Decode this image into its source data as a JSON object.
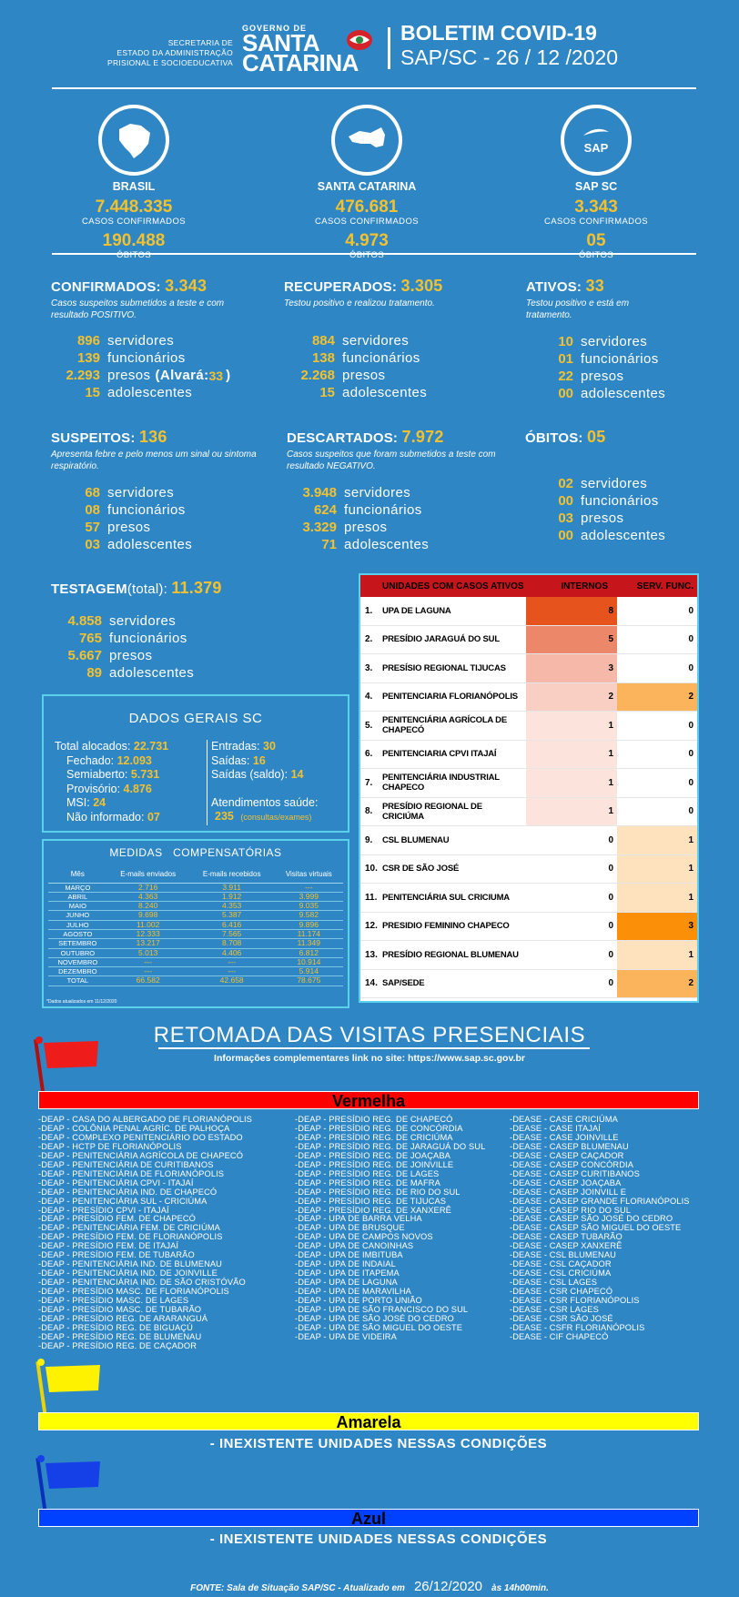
{
  "header": {
    "secretaria": "SECRETARIA DE\nESTADO DA ADMINISTRAÇÃO\nPRISIONAL E SOCIOEDUCATIVA",
    "gov": "GOVERNO DE",
    "state1": "SANTA",
    "state2": "CATARINA",
    "title": "BOLETIM COVID-19",
    "subtitle": "SAP/SC - 26 / 12 /2020"
  },
  "regions": [
    {
      "name": "BRASIL",
      "cases": "7.448.335",
      "cases_label": "CASOS CONFIRMADOS",
      "deaths": "190.488",
      "deaths_label": "ÓBITOS"
    },
    {
      "name": "SANTA CATARINA",
      "cases": "476.681",
      "cases_label": "CASOS CONFIRMADOS",
      "deaths": "4.973",
      "deaths_label": "ÓBITOS"
    },
    {
      "name": "SAP SC",
      "logo_text": "SAP",
      "cases": "3.343",
      "cases_label": "CASOS CONFIRMADOS",
      "deaths": "05",
      "deaths_label": "ÓBITOS"
    }
  ],
  "confirmados": {
    "label": "CONFIRMADOS:",
    "value": "3.343",
    "desc": "Casos suspeitos submetidos a teste e com resultado POSITIVO.",
    "rows": [
      {
        "n": "896",
        "t": "servidores"
      },
      {
        "n": "139",
        "t": "funcionários"
      },
      {
        "n": "2.293",
        "t": "presos"
      },
      {
        "n": "15",
        "t": "adolescentes"
      }
    ],
    "alvara_label": "(Alvará:",
    "alvara_value": "33",
    "alvara_close": ")"
  },
  "recuperados": {
    "label": "RECUPERADOS:",
    "value": "3.305",
    "desc": "Testou positivo e realizou tratamento.",
    "rows": [
      {
        "n": "884",
        "t": "servidores"
      },
      {
        "n": "138",
        "t": "funcionários"
      },
      {
        "n": "2.268",
        "t": "presos"
      },
      {
        "n": "15",
        "t": "adolescentes"
      }
    ]
  },
  "ativos": {
    "label": "ATIVOS:",
    "value": "33",
    "desc": "Testou positivo e está em tratamento.",
    "rows": [
      {
        "n": "10",
        "t": "servidores"
      },
      {
        "n": "01",
        "t": "funcionários"
      },
      {
        "n": "22",
        "t": "presos"
      },
      {
        "n": "00",
        "t": "adolescentes"
      }
    ]
  },
  "suspeitos": {
    "label": "SUSPEITOS:",
    "value": "136",
    "desc": "Apresenta febre e pelo menos um sinal ou sintoma respiratório.",
    "rows": [
      {
        "n": "68",
        "t": "servidores"
      },
      {
        "n": "08",
        "t": "funcionários"
      },
      {
        "n": "57",
        "t": "presos"
      },
      {
        "n": "03",
        "t": "adolescentes"
      }
    ]
  },
  "descartados": {
    "label": "DESCARTADOS:",
    "value": "7.972",
    "desc": "Casos suspeitos que foram submetidos a teste com resultado NEGATIVO.",
    "rows": [
      {
        "n": "3.948",
        "t": "servidores"
      },
      {
        "n": "624",
        "t": "funcionários"
      },
      {
        "n": "3.329",
        "t": "presos"
      },
      {
        "n": "71",
        "t": "adolescentes"
      }
    ]
  },
  "obitos": {
    "label": "ÓBITOS:",
    "value": "05",
    "rows": [
      {
        "n": "02",
        "t": "servidores"
      },
      {
        "n": "00",
        "t": "funcionários"
      },
      {
        "n": "03",
        "t": "presos"
      },
      {
        "n": "00",
        "t": "adolescentes"
      }
    ]
  },
  "testagem": {
    "label": "TESTAGEM",
    "sub": "(total):",
    "value": "11.379",
    "rows": [
      {
        "n": "4.858",
        "t": "servidores"
      },
      {
        "n": "765",
        "t": "funcionários"
      },
      {
        "n": "5.667",
        "t": "presos"
      },
      {
        "n": "89",
        "t": "adolescentes"
      }
    ]
  },
  "dados_gerais": {
    "title": "DADOS GERAIS SC",
    "left": [
      {
        "l": "Total alocados:",
        "v": "22.731"
      },
      {
        "l": "Fechado:",
        "v": "12.093"
      },
      {
        "l": "Semiaberto:",
        "v": "5.731"
      },
      {
        "l": "Provisório:",
        "v": "4.876"
      },
      {
        "l": "MSI:",
        "v": "24"
      },
      {
        "l": "Não informado:",
        "v": "07"
      }
    ],
    "right": [
      {
        "l": "Entradas:",
        "v": "30"
      },
      {
        "l": "Saídas:",
        "v": "16"
      },
      {
        "l": "Saídas (saldo):",
        "v": "14"
      }
    ],
    "atend_label": "Atendimentos saúde:",
    "atend_value": "235",
    "atend_note": "(consultas/exames)"
  },
  "medidas": {
    "title": "MEDIDAS   COMPENSATÓRIAS",
    "headers": [
      "Mês",
      "E-mails enviados",
      "E-mails recebidos",
      "Visitas virtuais"
    ],
    "rows": [
      [
        "MARÇO",
        "2.716",
        "3.911",
        "---"
      ],
      [
        "ABRIL",
        "4.363",
        "1.912",
        "3.999"
      ],
      [
        "MAIO",
        "8.240",
        "4.353",
        "9.035"
      ],
      [
        "JUNHO",
        "9.698",
        "5.387",
        "9.582"
      ],
      [
        "JULHO",
        "11.002",
        "6.416",
        "9.896"
      ],
      [
        "AGOSTO",
        "12.333",
        "7.565",
        "11.174"
      ],
      [
        "SETEMBRO",
        "13.217",
        "8.708",
        "11.349"
      ],
      [
        "OUTUBRO",
        "5.013",
        "4.406",
        "6.812"
      ],
      [
        "NOVEMBRO",
        "---",
        "---",
        "10.914"
      ],
      [
        "DEZEMBRO",
        "---",
        "---",
        "5.914"
      ],
      [
        "TOTAL",
        "66.582",
        "42.658",
        "78.675"
      ]
    ],
    "note": "*Dados atualizados em 11/12/2020"
  },
  "unidades": {
    "headers": [
      "UNIDADES COM CASOS ATIVOS",
      "INTERNOS",
      "SERV. FUNC."
    ],
    "rows": [
      {
        "i": "1.",
        "n": "UPA DE LAGUNA",
        "a": "8",
        "b": "0",
        "ca": "#e6531d",
        "cb": "#ffffff"
      },
      {
        "i": "2.",
        "n": "PRESÍDIO JARAGUÁ DO SUL",
        "a": "5",
        "b": "0",
        "ca": "#ec876a",
        "cb": "#ffffff"
      },
      {
        "i": "3.",
        "n": "PRESÍSIO REGIONAL TIJUCAS",
        "a": "3",
        "b": "0",
        "ca": "#f6b8a8",
        "cb": "#ffffff"
      },
      {
        "i": "4.",
        "n": "PENITENCIARIA FLORIANÓPOLIS",
        "a": "2",
        "b": "2",
        "ca": "#f9cfc3",
        "cb": "#fbb45b"
      },
      {
        "i": "5.",
        "n": "PENITENCIÁRIA AGRÍCOLA DE CHAPECÓ",
        "a": "1",
        "b": "0",
        "ca": "#fce4dd",
        "cb": "#ffffff"
      },
      {
        "i": "6.",
        "n": "PENITENCIARIA CPVI ITAJAÍ",
        "a": "1",
        "b": "0",
        "ca": "#fce4dd",
        "cb": "#ffffff"
      },
      {
        "i": "7.",
        "n": "PENITENCIÁRIA INDUSTRIAL CHAPECO",
        "a": "1",
        "b": "0",
        "ca": "#fce4dd",
        "cb": "#ffffff"
      },
      {
        "i": "8.",
        "n": "PRESÍDIO REGIONAL DE CRICIÚMA",
        "a": "1",
        "b": "0",
        "ca": "#fce4dd",
        "cb": "#ffffff"
      },
      {
        "i": "9.",
        "n": "CSL BLUMENAU",
        "a": "0",
        "b": "1",
        "ca": "#ffffff",
        "cb": "#fde2bd"
      },
      {
        "i": "10.",
        "n": "CSR DE SÃO JOSÉ",
        "a": "0",
        "b": "1",
        "ca": "#ffffff",
        "cb": "#fde2bd"
      },
      {
        "i": "11.",
        "n": "PENITENCIÁRIA SUL CRICIUMA",
        "a": "0",
        "b": "1",
        "ca": "#ffffff",
        "cb": "#fde2bd"
      },
      {
        "i": "12.",
        "n": "PRESIDIO FEMININO CHAPECO",
        "a": "0",
        "b": "3",
        "ca": "#ffffff",
        "cb": "#fb8f08"
      },
      {
        "i": "13.",
        "n": "PRESÍDIO REGIONAL BLUMENAU",
        "a": "0",
        "b": "1",
        "ca": "#ffffff",
        "cb": "#fde2bd"
      },
      {
        "i": "14.",
        "n": "SAP/SEDE",
        "a": "0",
        "b": "2",
        "ca": "#ffffff",
        "cb": "#fbb45b"
      }
    ]
  },
  "retomada": {
    "title": "RETOMADA DAS VISITAS PRESENCIAIS",
    "info": "Informações complementares link no site: https://www.sap.sc.gov.br",
    "vermelha": "Vermelha",
    "amarela": "Amarela",
    "azul": "Azul",
    "inexistente": "- INEXISTENTE UNIDADES NESSAS  CONDIÇÕES",
    "col1": [
      "-DEAP - CASA DO ALBERGADO DE FLORIANÓPOLIS",
      "-DEAP - COLÔNIA PENAL AGRÍC. DE PALHOÇA",
      "-DEAP - COMPLEXO PENITENCIÁRIO DO ESTADO",
      "-DEAP - HCTP DE FLORIANÓPOLIS",
      "-DEAP - PENITENCIÁRIA AGRÍCOLA DE CHAPECÓ",
      "-DEAP - PENITENCIÁRIA DE CURITIBANOS",
      "-DEAP - PENITENCIÁRIA DE FLORIANÓPOLIS",
      "-DEAP - PENITENCIÁRIA CPVI - ITAJAÍ",
      "-DEAP - PENITENCIÁRIA IND. DE CHAPECÓ",
      "-DEAP - PENITENCIÁRIA SUL - CRICIÚMA",
      "-DEAP - PRESÍDIO CPVI - ITAJAÍ",
      "-DEAP - PRESÍDIO FEM. DE CHAPECÓ",
      "-DEAP - PENITENCIÁRIA FEM. DE CRICIÚMA",
      "-DEAP - PRESÍDIO FEM. DE FLORIANÓPOLIS",
      "-DEAP - PRESÍDIO FEM. DE ITAJAÍ",
      "-DEAP - PRESÍDIO FEM. DE TUBARÃO",
      "-DEAP - PENITENCIÁRIA IND. DE BLUMENAU",
      "-DEAP - PENITENCIÁRIA IND. DE JOINVILLE",
      "-DEAP - PENITENCIÁRIA IND. DE SÃO CRISTÓVÃO",
      "-DEAP - PRESÍDIO MASC. DE FLORIANÓPOLIS",
      "-DEAP - PRESÍDIO MASC. DE LAGES",
      "-DEAP - PRESÍDIO MASC. DE TUBARÃO",
      "-DEAP - PRESÍDIO REG. DE ARARANGUÁ",
      "-DEAP - PRESÍDIO REG. DE BIGUAÇÚ",
      "-DEAP - PRESÍDIO REG. DE BLUMENAU",
      "-DEAP - PRESÍDIO REG. DE CAÇADOR"
    ],
    "col2": [
      "-DEAP - PRESÍDIO REG. DE CHAPECÓ",
      "-DEAP - PRESÍDIO REG. DE CONCÓRDIA",
      "-DEAP - PRESÍDIO REG. DE CRICIÚMA",
      "-DEAP - PRESÍDIO REG. DE JARAGUÁ DO SUL",
      "-DEAP - PRESÍDIO REG. DE JOAÇABA",
      "-DEAP - PRESÍDIO REG. DE JOINVILLE",
      "-DEAP - PRESÍDIO REG. DE LAGES",
      "-DEAP - PRESÍDIO REG. DE MAFRA",
      "-DEAP - PRESÍDIO REG. DE RIO DO SUL",
      "-DEAP - PRESÍDIO REG. DE TIJUCAS",
      "-DEAP - PRESÍDIO REG. DE XANXERÊ",
      "-DEAP - UPA DE BARRA VELHA",
      "-DEAP - UPA DE BRUSQUE",
      "-DEAP - UPA DE CAMPOS NOVOS",
      "-DEAP - UPA DE CANOINHAS",
      "-DEAP - UPA DE IMBITUBA",
      "-DEAP - UPA DE INDAIAL",
      "-DEAP - UPA DE ITAPEMA",
      "-DEAP - UPA DE LAGUNA",
      "-DEAP - UPA DE MARAVILHA",
      "-DEAP - UPA DE PORTO UNIÃO",
      "-DEAP - UPA DE SÃO FRANCISCO DO SUL",
      "-DEAP - UPA DE SÃO JOSÉ DO CEDRO",
      "-DEAP - UPA DE SÃO MIGUEL DO OESTE",
      "-DEAP - UPA DE VIDEIRA"
    ],
    "col3": [
      "-DEASE - CASE CRICIÚMA",
      "-DEASE - CASE ITAJAÍ",
      "-DEASE - CASE JOINVILLE",
      "-DEASE - CASEP BLUMENAU",
      "-DEASE - CASEP CAÇADOR",
      "-DEASE - CASEP CONCÓRDIA",
      "-DEASE - CASEP CURITIBANOS",
      "-DEASE - CASEP JOAÇABA",
      "-DEASE - CASEP JOINVILL E",
      "-DEASE - CASEP GRANDE FLORIANÓPOLIS",
      "-DEASE - CASEP RIO DO SUL",
      "-DEASE - CASEP SÃO JOSÉ DO CEDRO",
      "-DEASE - CASEP SÃO MIGUEL DO OESTE",
      "-DEASE - CASEP TUBARÃO",
      "-DEASE - CASEP XANXERÊ",
      "-DEASE - CSL BLUMENAU",
      "-DEASE - CSL CAÇADOR",
      "-DEASE - CSL CRICIÚMA",
      "-DEASE - CSL LAGES",
      "-DEASE - CSR CHAPECÓ",
      "-DEASE - CSR FLORIANÓPOLIS",
      "-DEASE - CSR LAGES",
      "-DEASE - CSR SÃO JOSÉ",
      "-DEASE - CSFR FLORIANÓPOLIS",
      "-DEASE - CIF CHAPECÓ"
    ]
  },
  "fonte": {
    "label": "FONTE: Sala de Situação SAP/SC - Atualizado em",
    "date": "26/12/2020",
    "time": "às 14h00min."
  },
  "colors": {
    "background": "#2f86c4",
    "accent": "#f2c130",
    "red": "#ff0000",
    "yellow": "#ffff00",
    "blue": "#0040ff",
    "cyan_border": "#5ad0ec",
    "table_header": "#c6151b"
  }
}
